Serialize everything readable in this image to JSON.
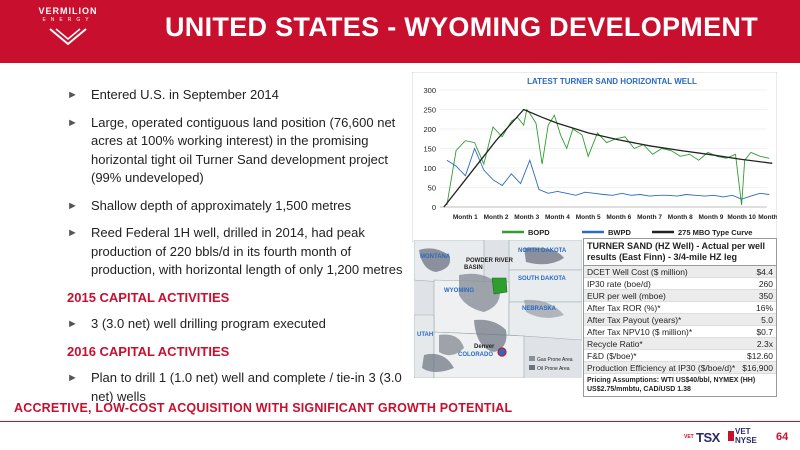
{
  "header": {
    "logo_name": "VERMILION",
    "logo_sub": "ENERGY",
    "title": "UNITED STATES - WYOMING DEVELOPMENT",
    "bg_color": "#c8102e"
  },
  "bullets_top": [
    "Entered U.S. in September 2014",
    "Large, operated contiguous land position (76,600 net acres at 100% working interest) in the promising horizontal tight oil Turner Sand development project (99% undeveloped)",
    "Shallow depth of approximately 1,500 metres",
    "Reed Federal 1H well, drilled in 2014, had peak production of 220 bbls/d in its fourth month of production, with horizontal length of only 1,200 metres"
  ],
  "section_2015": {
    "heading": "2015 CAPITAL ACTIVITIES",
    "bullets": [
      "3 (3.0 net) well drilling program executed"
    ]
  },
  "section_2016": {
    "heading": "2016 CAPITAL ACTIVITIES",
    "bullets": [
      "Plan to drill 1 (1.0 net) well and complete / tie-in 3 (3.0 net) wells"
    ]
  },
  "chart_data": {
    "type": "line",
    "title": "LATEST TURNER SAND HORIZONTAL WELL",
    "categories": [
      "Month 1",
      "Month 2",
      "Month 3",
      "Month 4",
      "Month 5",
      "Month 6",
      "Month 7",
      "Month 8",
      "Month 9",
      "Month 10",
      "Month 11"
    ],
    "ylim": [
      0,
      300
    ],
    "yticks": [
      "0",
      "50",
      "100",
      "150",
      "200",
      "250",
      "300"
    ],
    "legend_position": "bottom",
    "series": [
      {
        "name": "BOPD",
        "color": "#2e9e2e",
        "x": [
          0.4,
          0.7,
          1.0,
          1.3,
          1.6,
          1.9,
          2.2,
          2.5,
          2.7,
          2.9,
          3.0,
          3.1,
          3.3,
          3.5,
          3.7,
          3.9,
          4.1,
          4.3,
          4.5,
          4.8,
          5.0,
          5.3,
          5.6,
          5.9,
          6.2,
          6.5,
          6.8,
          7.1,
          7.4,
          7.7,
          8.0,
          8.3,
          8.6,
          8.9,
          9.2,
          9.5,
          9.8,
          10.0,
          10.1,
          10.3,
          10.6,
          10.9
        ],
        "y": [
          5,
          145,
          170,
          165,
          110,
          205,
          180,
          220,
          230,
          210,
          250,
          240,
          215,
          110,
          210,
          235,
          185,
          150,
          200,
          185,
          130,
          190,
          165,
          175,
          180,
          150,
          160,
          135,
          150,
          145,
          130,
          135,
          120,
          140,
          130,
          125,
          135,
          5,
          120,
          140,
          130,
          125
        ]
      },
      {
        "name": "BWPD",
        "color": "#2a6bc0",
        "x": [
          0.4,
          0.7,
          1.0,
          1.3,
          1.6,
          1.9,
          2.2,
          2.5,
          2.8,
          3.1,
          3.4,
          3.7,
          4.0,
          4.3,
          4.6,
          4.9,
          5.2,
          5.5,
          5.8,
          6.1,
          6.4,
          6.7,
          7.0,
          7.3,
          7.6,
          7.9,
          8.2,
          8.5,
          8.8,
          9.1,
          9.4,
          9.7,
          10.0,
          10.3,
          10.6,
          10.9
        ],
        "y": [
          120,
          105,
          80,
          150,
          95,
          70,
          55,
          85,
          60,
          120,
          45,
          35,
          40,
          35,
          30,
          38,
          35,
          32,
          30,
          35,
          30,
          32,
          28,
          30,
          30,
          28,
          32,
          30,
          28,
          30,
          26,
          30,
          20,
          28,
          35,
          32
        ]
      },
      {
        "name": "275 MBO Type Curve",
        "color": "#222222",
        "x": [
          0.3,
          1.0,
          2.0,
          2.9,
          3.5,
          4.0,
          5.0,
          6.0,
          7.0,
          8.0,
          9.0,
          10.0,
          11.0
        ],
        "y": [
          0,
          70,
          170,
          250,
          230,
          215,
          190,
          172,
          157,
          145,
          134,
          122,
          112
        ]
      }
    ]
  },
  "map": {
    "labels": [
      "MONTANA",
      "NORTH DAKOTA",
      "SOUTH DAKOTA",
      "POWDER RIVER BASIN",
      "WYOMING",
      "NEBRASKA",
      "UTAH",
      "Denver",
      "COLORADO"
    ],
    "legend": [
      "Gas Prone Area",
      "Oil Prone Area"
    ]
  },
  "table": {
    "title": "TURNER SAND (HZ Well) - Actual per well results (East Finn) - 3/4-mile HZ leg",
    "rows": [
      {
        "label": "DCET Well Cost ($ million)",
        "value": "$4.4"
      },
      {
        "label": "IP30 rate (boe/d)",
        "value": "260"
      },
      {
        "label": "EUR per well (mboe)",
        "value": "350"
      },
      {
        "label": "After Tax ROR (%)*",
        "value": "16%"
      },
      {
        "label": "After Tax Payout (years)*",
        "value": "5.0"
      },
      {
        "label": "After Tax NPV10 ($ million)*",
        "value": "$0.7"
      },
      {
        "label": "Recycle Ratio*",
        "value": "2.3x"
      },
      {
        "label": "F&D ($/boe)*",
        "value": "$12.60"
      },
      {
        "label": "Production Efficiency at IP30 ($/boe/d)*",
        "value": "$16,900"
      }
    ],
    "note": "Pricing Assumptions: WTI US$40/bbl, NYMEX (HH) US$2.75/mmbtu, CAD/USD 1.38"
  },
  "tagline": "ACCRETIVE, LOW-COST ACQUISITION WITH SIGNIFICANT GROWTH POTENTIAL",
  "footer": {
    "vet_small": "VET",
    "tsx": "TSX",
    "vet": "VET",
    "nyse": "NYSE",
    "page": "64"
  }
}
